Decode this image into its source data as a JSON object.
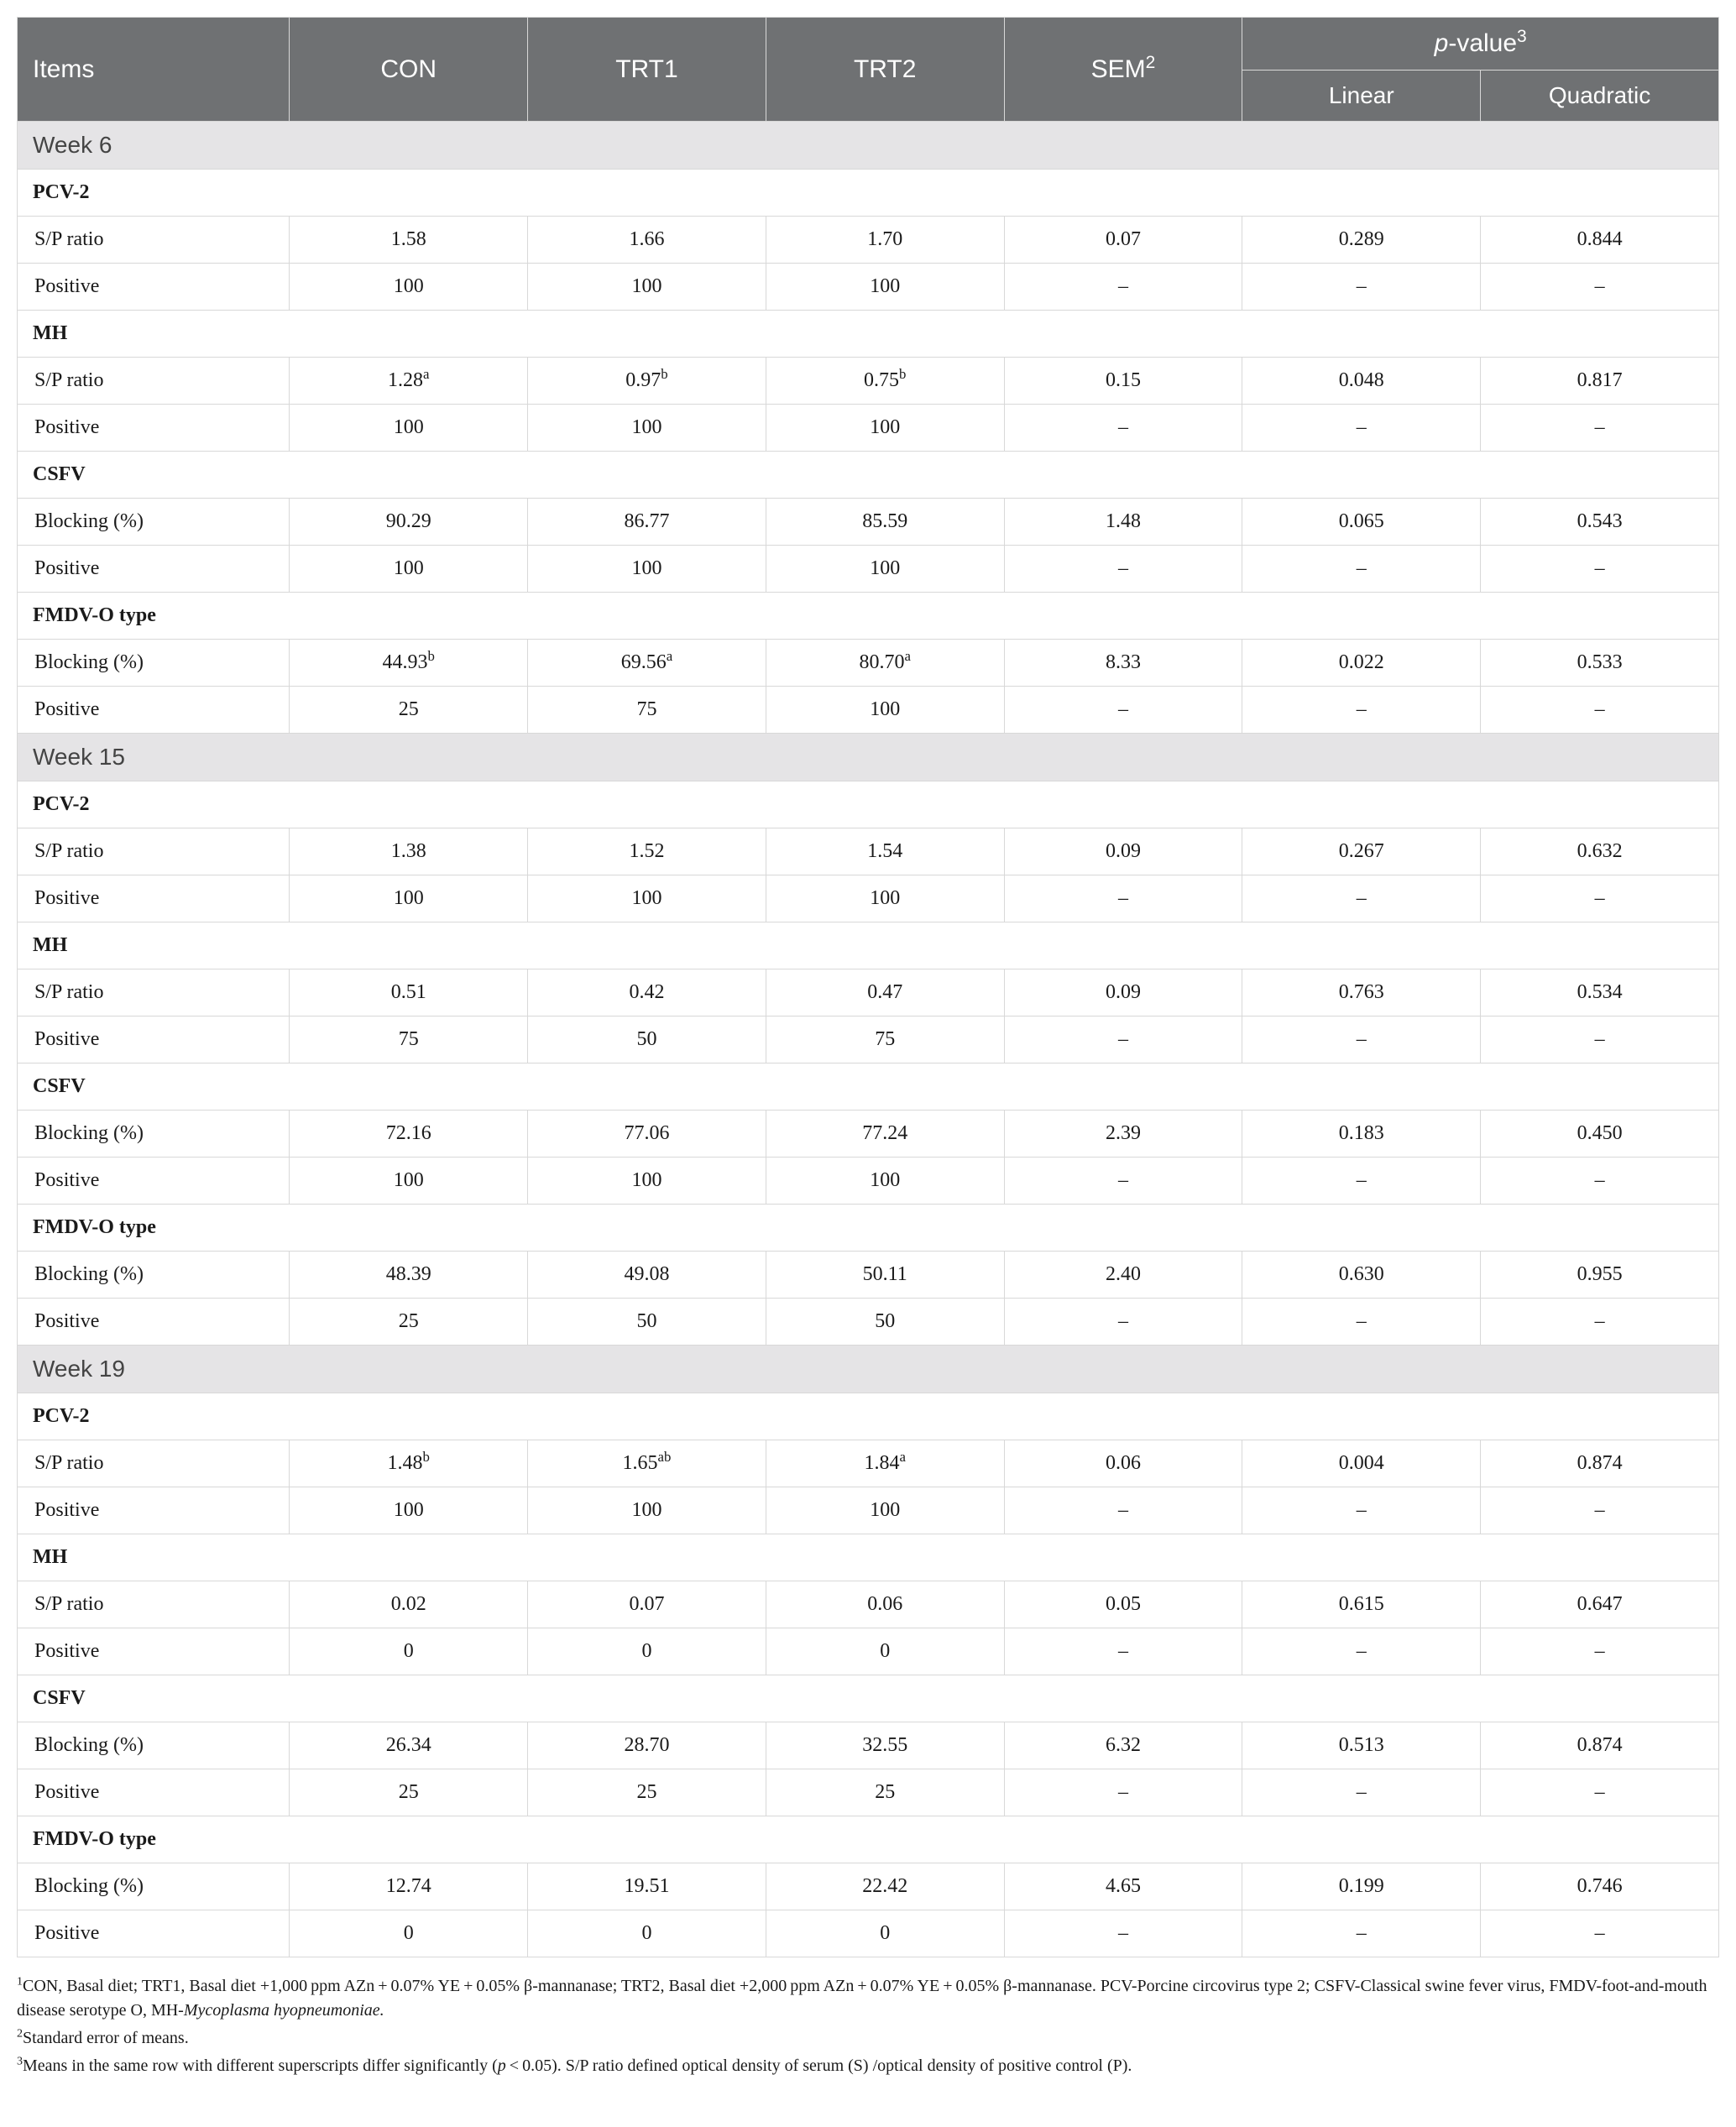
{
  "colors": {
    "header_bg": "#6f7173",
    "header_fg": "#ffffff",
    "section_bg": "#e5e4e6",
    "border": "#d8d8d8",
    "text": "#1a1a1a"
  },
  "columns": {
    "items": "Items",
    "con": "CON",
    "trt1": "TRT1",
    "trt2": "TRT2",
    "sem": "SEM",
    "sem_sup": "2",
    "pvalue": "p",
    "pvalue_suffix": "-value",
    "pvalue_sup": "3",
    "linear": "Linear",
    "quadratic": "Quadratic"
  },
  "weeks": [
    {
      "title": "Week 6",
      "groups": [
        {
          "name": "PCV-2",
          "rows": [
            {
              "label": "S/P ratio",
              "con": "1.58",
              "con_sup": "",
              "trt1": "1.66",
              "trt1_sup": "",
              "trt2": "1.70",
              "trt2_sup": "",
              "sem": "0.07",
              "lin": "0.289",
              "quad": "0.844"
            },
            {
              "label": "Positive",
              "con": "100",
              "con_sup": "",
              "trt1": "100",
              "trt1_sup": "",
              "trt2": "100",
              "trt2_sup": "",
              "sem": "–",
              "lin": "–",
              "quad": "–"
            }
          ]
        },
        {
          "name": "MH",
          "rows": [
            {
              "label": "S/P ratio",
              "con": "1.28",
              "con_sup": "a",
              "trt1": "0.97",
              "trt1_sup": "b",
              "trt2": "0.75",
              "trt2_sup": "b",
              "sem": "0.15",
              "lin": "0.048",
              "quad": "0.817"
            },
            {
              "label": "Positive",
              "con": "100",
              "con_sup": "",
              "trt1": "100",
              "trt1_sup": "",
              "trt2": "100",
              "trt2_sup": "",
              "sem": "–",
              "lin": "–",
              "quad": "–"
            }
          ]
        },
        {
          "name": "CSFV",
          "rows": [
            {
              "label": "Blocking (%)",
              "con": "90.29",
              "con_sup": "",
              "trt1": "86.77",
              "trt1_sup": "",
              "trt2": "85.59",
              "trt2_sup": "",
              "sem": "1.48",
              "lin": "0.065",
              "quad": "0.543"
            },
            {
              "label": "Positive",
              "con": "100",
              "con_sup": "",
              "trt1": "100",
              "trt1_sup": "",
              "trt2": "100",
              "trt2_sup": "",
              "sem": "–",
              "lin": "–",
              "quad": "–"
            }
          ]
        },
        {
          "name": "FMDV-O type",
          "rows": [
            {
              "label": "Blocking (%)",
              "con": "44.93",
              "con_sup": "b",
              "trt1": "69.56",
              "trt1_sup": "a",
              "trt2": "80.70",
              "trt2_sup": "a",
              "sem": "8.33",
              "lin": "0.022",
              "quad": "0.533"
            },
            {
              "label": "Positive",
              "con": "25",
              "con_sup": "",
              "trt1": "75",
              "trt1_sup": "",
              "trt2": "100",
              "trt2_sup": "",
              "sem": "–",
              "lin": "–",
              "quad": "–"
            }
          ]
        }
      ]
    },
    {
      "title": "Week 15",
      "groups": [
        {
          "name": "PCV-2",
          "rows": [
            {
              "label": "S/P ratio",
              "con": "1.38",
              "con_sup": "",
              "trt1": "1.52",
              "trt1_sup": "",
              "trt2": "1.54",
              "trt2_sup": "",
              "sem": "0.09",
              "lin": "0.267",
              "quad": "0.632"
            },
            {
              "label": "Positive",
              "con": "100",
              "con_sup": "",
              "trt1": "100",
              "trt1_sup": "",
              "trt2": "100",
              "trt2_sup": "",
              "sem": "–",
              "lin": "–",
              "quad": "–"
            }
          ]
        },
        {
          "name": "MH",
          "rows": [
            {
              "label": "S/P ratio",
              "con": "0.51",
              "con_sup": "",
              "trt1": "0.42",
              "trt1_sup": "",
              "trt2": "0.47",
              "trt2_sup": "",
              "sem": "0.09",
              "lin": "0.763",
              "quad": "0.534"
            },
            {
              "label": "Positive",
              "con": "75",
              "con_sup": "",
              "trt1": "50",
              "trt1_sup": "",
              "trt2": "75",
              "trt2_sup": "",
              "sem": "–",
              "lin": "–",
              "quad": "–"
            }
          ]
        },
        {
          "name": "CSFV",
          "rows": [
            {
              "label": "Blocking (%)",
              "con": "72.16",
              "con_sup": "",
              "trt1": "77.06",
              "trt1_sup": "",
              "trt2": "77.24",
              "trt2_sup": "",
              "sem": "2.39",
              "lin": "0.183",
              "quad": "0.450"
            },
            {
              "label": "Positive",
              "con": "100",
              "con_sup": "",
              "trt1": "100",
              "trt1_sup": "",
              "trt2": "100",
              "trt2_sup": "",
              "sem": "–",
              "lin": "–",
              "quad": "–"
            }
          ]
        },
        {
          "name": "FMDV-O type",
          "rows": [
            {
              "label": "Blocking (%)",
              "con": "48.39",
              "con_sup": "",
              "trt1": "49.08",
              "trt1_sup": "",
              "trt2": "50.11",
              "trt2_sup": "",
              "sem": "2.40",
              "lin": "0.630",
              "quad": "0.955"
            },
            {
              "label": "Positive",
              "con": "25",
              "con_sup": "",
              "trt1": "50",
              "trt1_sup": "",
              "trt2": "50",
              "trt2_sup": "",
              "sem": "–",
              "lin": "–",
              "quad": "–"
            }
          ]
        }
      ]
    },
    {
      "title": "Week 19",
      "groups": [
        {
          "name": "PCV-2",
          "rows": [
            {
              "label": "S/P ratio",
              "con": "1.48",
              "con_sup": "b",
              "trt1": "1.65",
              "trt1_sup": "ab",
              "trt2": "1.84",
              "trt2_sup": "a",
              "sem": "0.06",
              "lin": "0.004",
              "quad": "0.874"
            },
            {
              "label": "Positive",
              "con": "100",
              "con_sup": "",
              "trt1": "100",
              "trt1_sup": "",
              "trt2": "100",
              "trt2_sup": "",
              "sem": "–",
              "lin": "–",
              "quad": "–"
            }
          ]
        },
        {
          "name": "MH",
          "rows": [
            {
              "label": "S/P ratio",
              "con": "0.02",
              "con_sup": "",
              "trt1": "0.07",
              "trt1_sup": "",
              "trt2": "0.06",
              "trt2_sup": "",
              "sem": "0.05",
              "lin": "0.615",
              "quad": "0.647"
            },
            {
              "label": "Positive",
              "con": "0",
              "con_sup": "",
              "trt1": "0",
              "trt1_sup": "",
              "trt2": "0",
              "trt2_sup": "",
              "sem": "–",
              "lin": "–",
              "quad": "–"
            }
          ]
        },
        {
          "name": "CSFV",
          "rows": [
            {
              "label": "Blocking (%)",
              "con": "26.34",
              "con_sup": "",
              "trt1": "28.70",
              "trt1_sup": "",
              "trt2": "32.55",
              "trt2_sup": "",
              "sem": "6.32",
              "lin": "0.513",
              "quad": "0.874"
            },
            {
              "label": "Positive",
              "con": "25",
              "con_sup": "",
              "trt1": "25",
              "trt1_sup": "",
              "trt2": "25",
              "trt2_sup": "",
              "sem": "–",
              "lin": "–",
              "quad": "–"
            }
          ]
        },
        {
          "name": "FMDV-O type",
          "rows": [
            {
              "label": "Blocking (%)",
              "con": "12.74",
              "con_sup": "",
              "trt1": "19.51",
              "trt1_sup": "",
              "trt2": "22.42",
              "trt2_sup": "",
              "sem": "4.65",
              "lin": "0.199",
              "quad": "0.746"
            },
            {
              "label": "Positive",
              "con": "0",
              "con_sup": "",
              "trt1": "0",
              "trt1_sup": "",
              "trt2": "0",
              "trt2_sup": "",
              "sem": "–",
              "lin": "–",
              "quad": "–"
            }
          ]
        }
      ]
    }
  ],
  "footnotes": {
    "f1_sup": "1",
    "f1_a": "CON, Basal diet; TRT1, Basal diet +1,000 ppm AZn + 0.07% YE + 0.05% β-mannanase; TRT2, Basal diet +2,000 ppm AZn + 0.07% YE + 0.05% β-mannanase. PCV-Porcine circovirus type 2; CSFV-Classical swine fever virus, FMDV-foot-and-mouth disease serotype O, MH-",
    "f1_italic": "Mycoplasma hyopneumoniae.",
    "f2_sup": "2",
    "f2": "Standard error of means.",
    "f3_sup": "3",
    "f3_a": "Means in the same row with different superscripts differ significantly (",
    "f3_p": "p",
    "f3_b": " < 0.05). S/P ratio defined optical density of serum (S) /optical density of positive control (P)."
  }
}
